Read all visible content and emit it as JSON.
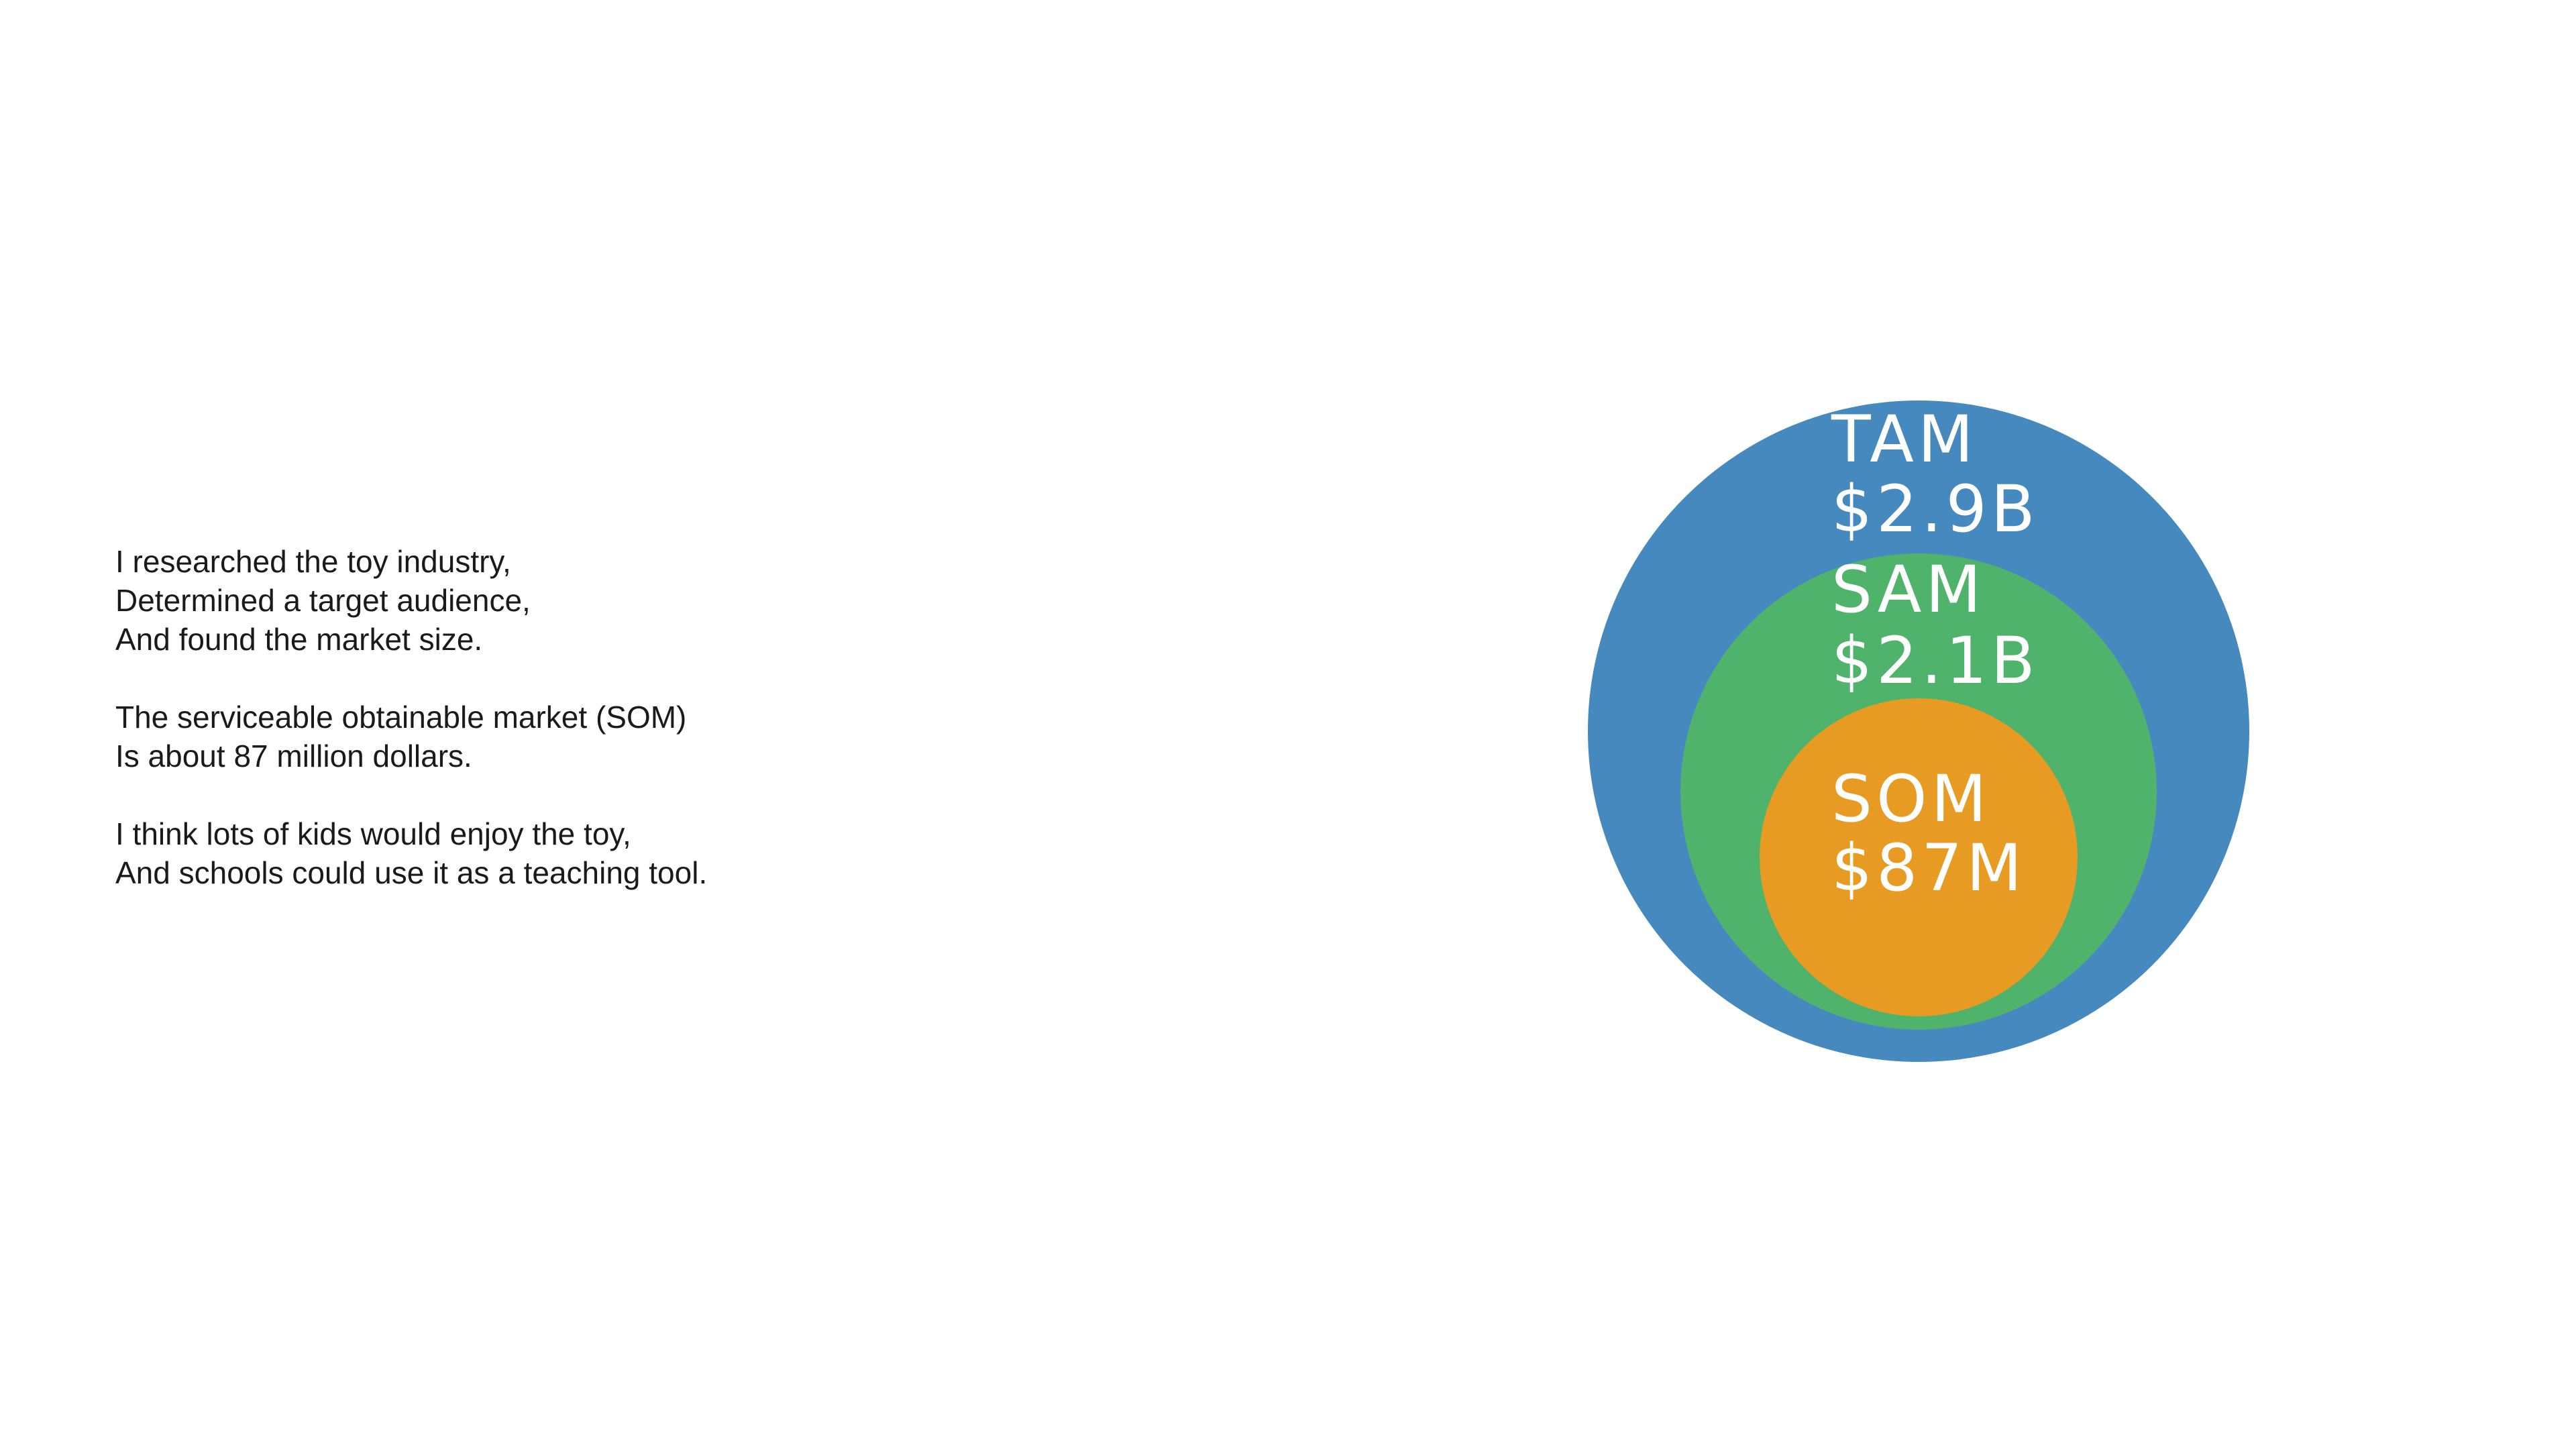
{
  "text": {
    "paragraphs": [
      {
        "lines": [
          "I researched the toy industry,",
          "Determined a target audience,",
          "And found the market size."
        ]
      },
      {
        "lines": [
          "The serviceable obtainable market (SOM)",
          "Is about 87 million dollars."
        ]
      },
      {
        "lines": [
          "I think lots of kids would enjoy the toy,",
          "And schools could use it as a teaching tool."
        ]
      }
    ]
  },
  "diagram": {
    "circles": [
      {
        "id": "tam",
        "name": "TAM",
        "value": "$2.9B",
        "color": "#4589bf"
      },
      {
        "id": "sam",
        "name": "SAM",
        "value": "$2.1B",
        "color": "#4fb36c"
      },
      {
        "id": "som",
        "name": "SOM",
        "value": "$87M",
        "color": "#e89b22"
      }
    ]
  }
}
